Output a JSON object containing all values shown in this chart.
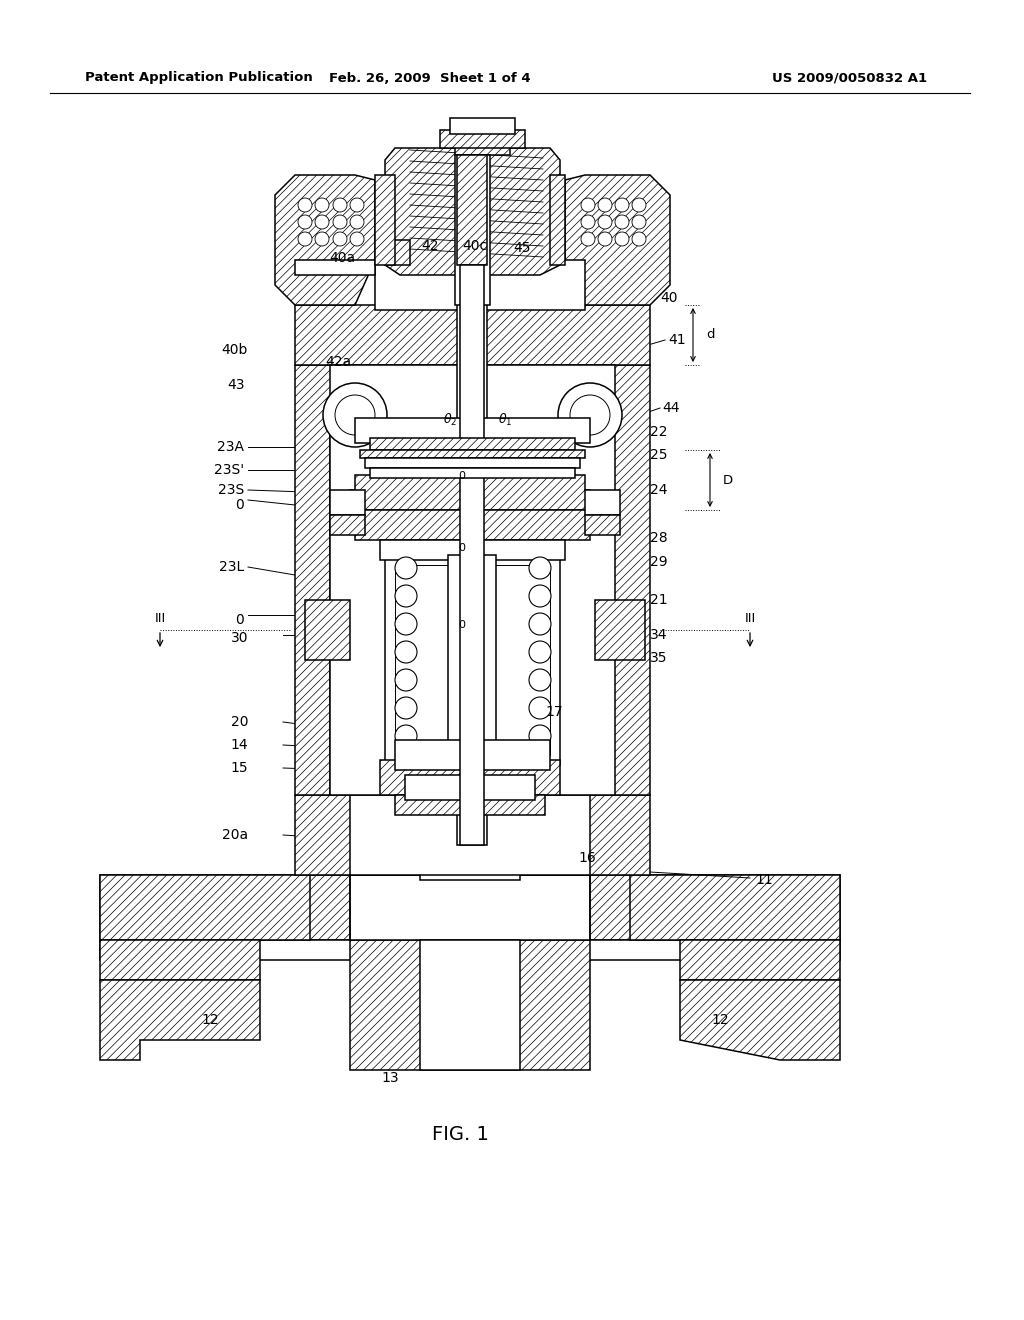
{
  "background_color": "#ffffff",
  "header_left": "Patent Application Publication",
  "header_center": "Feb. 26, 2009  Sheet 1 of 4",
  "header_right": "US 2009/0050832 A1",
  "figure_label": "FIG. 1",
  "lw_main": 1.1,
  "lw_thin": 0.7,
  "hatch": "////",
  "hatch_lw": 0.5
}
